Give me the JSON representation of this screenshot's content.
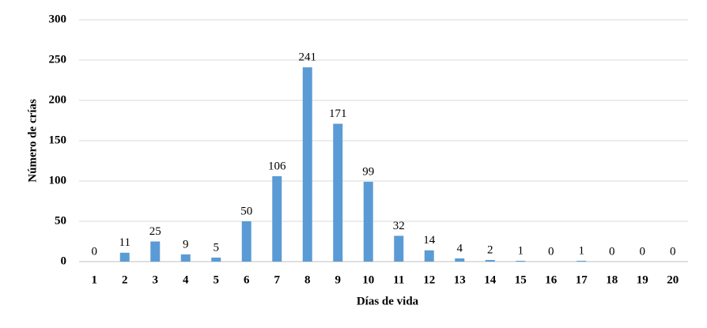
{
  "chart_data": {
    "type": "bar",
    "x_label": "Días de vida",
    "y_label": "Número de crías",
    "categories": [
      "1",
      "2",
      "3",
      "4",
      "5",
      "6",
      "7",
      "8",
      "9",
      "10",
      "11",
      "12",
      "13",
      "14",
      "15",
      "16",
      "17",
      "18",
      "19",
      "20"
    ],
    "values": [
      0,
      11,
      25,
      9,
      5,
      50,
      106,
      241,
      171,
      99,
      32,
      14,
      4,
      2,
      1,
      0,
      1,
      0,
      0,
      0
    ],
    "color": "#5b9bd5",
    "ylim": [
      0,
      300
    ],
    "yticks": [
      0,
      50,
      100,
      150,
      200,
      250,
      300
    ],
    "grid": true
  }
}
